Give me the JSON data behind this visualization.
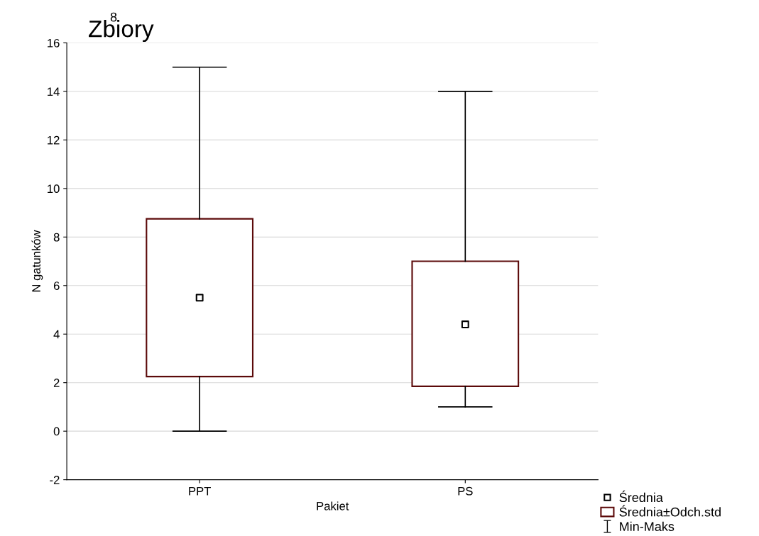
{
  "chart_data": {
    "type": "box",
    "title": "Zbiory",
    "xlabel": "Pakiet",
    "ylabel": "N gatunków",
    "categories": [
      "PPT",
      "PS"
    ],
    "ylim": [
      -2,
      16
    ],
    "yticks": [
      -2,
      0,
      2,
      4,
      6,
      8,
      10,
      12,
      14,
      16
    ],
    "grid": "y",
    "legend": "bottom right",
    "series": [
      {
        "type": "scatter",
        "name": "Średnia",
        "color": "#000000",
        "marker": "square",
        "x": [
          "PPT",
          "PS"
        ],
        "values": [
          5.5,
          4.4
        ]
      },
      {
        "name": "Średnia±Odch.std",
        "color": "#5c0a0a",
        "boxes": [
          {
            "low": 0,
            "q1": 2.25,
            "q3": 8.75,
            "high": 15
          },
          {
            "low": 1,
            "q1": 1.85,
            "q3": 7.0,
            "high": 14
          }
        ]
      }
    ],
    "annotations": [
      "8",
      "Min-Maks"
    ]
  }
}
